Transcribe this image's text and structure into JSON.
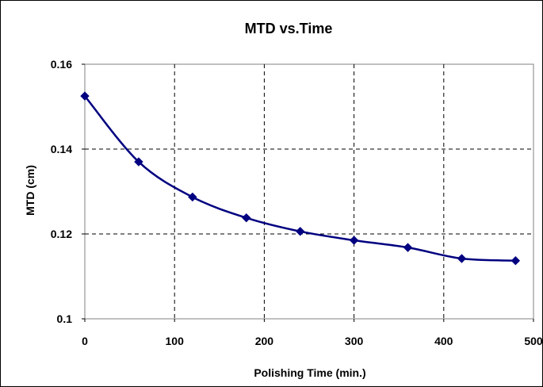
{
  "chart_data": {
    "type": "line",
    "title": "MTD vs.Time",
    "xlabel": "Polishing Time (min.)",
    "ylabel": "MTD (cm)",
    "xlim": [
      0,
      500
    ],
    "ylim": [
      0.1,
      0.16
    ],
    "x_ticks": [
      "0",
      "100",
      "200",
      "300",
      "400",
      "500"
    ],
    "y_ticks": [
      "0.1",
      "0.12",
      "0.14",
      "0.16"
    ],
    "grid": true,
    "legend": "none",
    "series": [
      {
        "x": [
          0,
          60,
          120,
          180,
          240,
          300,
          360,
          420,
          480
        ],
        "y": [
          0.1525,
          0.137,
          0.1287,
          0.1238,
          0.1206,
          0.1185,
          0.1168,
          0.1142,
          0.1137
        ],
        "marker": "diamond",
        "color": "#000080"
      }
    ]
  }
}
